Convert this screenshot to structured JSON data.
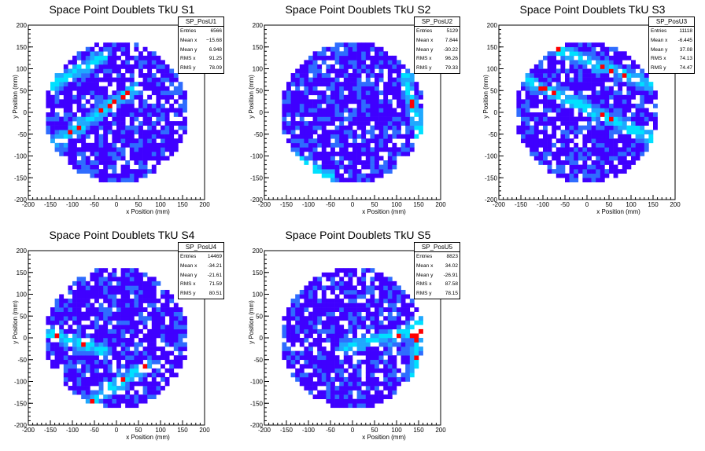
{
  "chart_data": [
    {
      "type": "heatmap",
      "title": "Space Point Doublets TkU S1",
      "xlabel": "x Position (mm)",
      "ylabel": "y Position (mm)",
      "xlim": [
        -200,
        200
      ],
      "ylim": [
        -200,
        200
      ],
      "xticks": [
        "-200",
        "-150",
        "-100",
        "-50",
        "0",
        "50",
        "100",
        "150",
        "200"
      ],
      "yticks": [
        "-200",
        "-150",
        "-100",
        "-50",
        "0",
        "50",
        "100",
        "150",
        "200"
      ],
      "legend_position": "top-right",
      "stats": {
        "name": "SP_PosU1",
        "rows": [
          {
            "label": "Entries",
            "value": "6566"
          },
          {
            "label": "Mean x",
            "value": "−15.68"
          },
          {
            "label": "Mean y",
            "value": "6.948"
          },
          {
            "label": "RMS x",
            "value": "91.25"
          },
          {
            "label": "RMS y",
            "value": "78.09"
          }
        ]
      },
      "bands": [
        [
          -150,
          -80,
          40,
          55
        ],
        [
          -150,
          60,
          -30,
          130
        ]
      ]
    },
    {
      "type": "heatmap",
      "title": "Space Point Doublets TkU S2",
      "xlabel": "x Position (mm)",
      "ylabel": "y Position (mm)",
      "xlim": [
        -200,
        200
      ],
      "ylim": [
        -200,
        200
      ],
      "xticks": [
        "-200",
        "-150",
        "-100",
        "-50",
        "0",
        "50",
        "100",
        "150",
        "200"
      ],
      "yticks": [
        "-200",
        "-150",
        "-100",
        "-50",
        "0",
        "50",
        "100",
        "150",
        "200"
      ],
      "legend_position": "top-right",
      "stats": {
        "name": "SP_PosU2",
        "rows": [
          {
            "label": "Entries",
            "value": "5129"
          },
          {
            "label": "Mean x",
            "value": "7.844"
          },
          {
            "label": "Mean y",
            "value": "-30.22"
          },
          {
            "label": "RMS x",
            "value": "96.26"
          },
          {
            "label": "RMS y",
            "value": "79.33"
          }
        ]
      },
      "bands": [
        [
          -140,
          -100,
          -50,
          -150
        ],
        [
          120,
          80,
          160,
          -80
        ]
      ]
    },
    {
      "type": "heatmap",
      "title": "Space Point Doublets TkU S3",
      "xlabel": "x Position (mm)",
      "ylabel": "y Position (mm)",
      "xlim": [
        -200,
        200
      ],
      "ylim": [
        -200,
        200
      ],
      "xticks": [
        "-200",
        "-150",
        "-100",
        "-50",
        "0",
        "50",
        "100",
        "150",
        "200"
      ],
      "yticks": [
        "-200",
        "-150",
        "-100",
        "-50",
        "0",
        "50",
        "100",
        "150",
        "200"
      ],
      "legend_position": "top-right",
      "stats": {
        "name": "SP_PosU3",
        "rows": [
          {
            "label": "Entries",
            "value": "11118"
          },
          {
            "label": "Mean x",
            "value": "-6.445"
          },
          {
            "label": "Mean y",
            "value": "37.08"
          },
          {
            "label": "RMS x",
            "value": "74.13"
          },
          {
            "label": "RMS y",
            "value": "74.47"
          }
        ]
      },
      "bands": [
        [
          -150,
          80,
          150,
          -60
        ],
        [
          -80,
          150,
          150,
          60
        ]
      ]
    },
    {
      "type": "heatmap",
      "title": "Space Point Doublets TkU S4",
      "xlabel": "x Position (mm)",
      "ylabel": "y Position (mm)",
      "xlim": [
        -200,
        200
      ],
      "ylim": [
        -200,
        200
      ],
      "xticks": [
        "-200",
        "-150",
        "-100",
        "-50",
        "0",
        "50",
        "100",
        "150",
        "200"
      ],
      "yticks": [
        "-200",
        "-150",
        "-100",
        "-50",
        "0",
        "50",
        "100",
        "150",
        "200"
      ],
      "legend_position": "top-right",
      "stats": {
        "name": "SP_PosU4",
        "rows": [
          {
            "label": "Entries",
            "value": "14469"
          },
          {
            "label": "Mean x",
            "value": "-34.21"
          },
          {
            "label": "Mean y",
            "value": "-21.61"
          },
          {
            "label": "RMS x",
            "value": "71.59"
          },
          {
            "label": "RMS y",
            "value": "80.51"
          }
        ]
      },
      "bands": [
        [
          -60,
          -145,
          75,
          -60
        ],
        [
          -150,
          10,
          -30,
          -30
        ]
      ]
    },
    {
      "type": "heatmap",
      "title": "Space Point Doublets TkU S5",
      "xlabel": "x Position (mm)",
      "ylabel": "y Position (mm)",
      "xlim": [
        -200,
        200
      ],
      "ylim": [
        -200,
        200
      ],
      "xticks": [
        "-200",
        "-150",
        "-100",
        "-50",
        "0",
        "50",
        "100",
        "150",
        "200"
      ],
      "yticks": [
        "-200",
        "-150",
        "-100",
        "-50",
        "0",
        "50",
        "100",
        "150",
        "200"
      ],
      "legend_position": "top-right",
      "stats": {
        "name": "SP_PosU5",
        "rows": [
          {
            "label": "Entries",
            "value": "8823"
          },
          {
            "label": "Mean x",
            "value": "34.02"
          },
          {
            "label": "Mean y",
            "value": "-26.91"
          },
          {
            "label": "RMS x",
            "value": "87.58"
          },
          {
            "label": "RMS y",
            "value": "78.15"
          }
        ]
      },
      "bands": [
        [
          -20,
          -20,
          160,
          20
        ],
        [
          140,
          -100,
          150,
          40
        ]
      ]
    }
  ],
  "colors": {
    "background": "#ffffff",
    "low": "#3f00ff",
    "mid": "#2f6cff",
    "high": "#00e0ff",
    "peak": "#ff0000"
  }
}
